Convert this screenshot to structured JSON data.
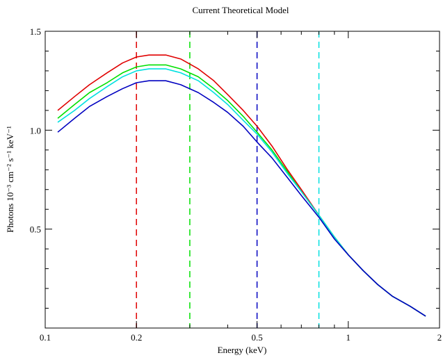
{
  "chart_data": {
    "type": "line",
    "title": "Current Theoretical Model",
    "xlabel": "Energy (keV)",
    "ylabel": "Photons 10⁻³ cm⁻² s⁻¹ keV⁻¹",
    "xscale": "log",
    "xlim": [
      0.1,
      2.0
    ],
    "ylim": [
      0.0,
      1.5
    ],
    "x_ticks": [
      {
        "value": 0.1,
        "label": "0.1"
      },
      {
        "value": 0.2,
        "label": "0.2"
      },
      {
        "value": 0.5,
        "label": "0.5"
      },
      {
        "value": 1.0,
        "label": "1"
      },
      {
        "value": 2.0,
        "label": "2"
      }
    ],
    "y_ticks": [
      {
        "value": 0.5,
        "label": "0.5"
      },
      {
        "value": 1.0,
        "label": "1.0"
      },
      {
        "value": 1.5,
        "label": "1.5"
      }
    ],
    "grid": false,
    "x": [
      0.11,
      0.125,
      0.14,
      0.16,
      0.18,
      0.2,
      0.22,
      0.25,
      0.28,
      0.32,
      0.36,
      0.4,
      0.45,
      0.5,
      0.56,
      0.63,
      0.7,
      0.8,
      0.9,
      1.0,
      1.12,
      1.25,
      1.4,
      1.6,
      1.8
    ],
    "series": [
      {
        "color": "#e00000",
        "values": [
          1.1,
          1.17,
          1.23,
          1.29,
          1.34,
          1.37,
          1.38,
          1.38,
          1.36,
          1.31,
          1.25,
          1.18,
          1.1,
          1.02,
          0.92,
          0.8,
          0.7,
          0.57,
          0.46,
          0.37,
          0.29,
          0.22,
          0.16,
          0.11,
          0.06
        ]
      },
      {
        "color": "#00e000",
        "values": [
          1.06,
          1.13,
          1.19,
          1.24,
          1.29,
          1.32,
          1.33,
          1.33,
          1.31,
          1.27,
          1.21,
          1.15,
          1.07,
          0.99,
          0.9,
          0.79,
          0.69,
          0.57,
          0.46,
          0.37,
          0.29,
          0.22,
          0.16,
          0.11,
          0.06
        ]
      },
      {
        "color": "#00e0e0",
        "values": [
          1.04,
          1.1,
          1.16,
          1.22,
          1.27,
          1.3,
          1.31,
          1.31,
          1.29,
          1.25,
          1.19,
          1.13,
          1.05,
          0.98,
          0.89,
          0.78,
          0.69,
          0.57,
          0.46,
          0.37,
          0.29,
          0.22,
          0.16,
          0.11,
          0.06
        ]
      },
      {
        "color": "#0000c0",
        "values": [
          0.99,
          1.06,
          1.12,
          1.17,
          1.21,
          1.24,
          1.25,
          1.25,
          1.23,
          1.19,
          1.14,
          1.09,
          1.02,
          0.94,
          0.86,
          0.76,
          0.67,
          0.56,
          0.45,
          0.37,
          0.29,
          0.22,
          0.16,
          0.11,
          0.06
        ]
      }
    ],
    "vlines": [
      {
        "x": 0.2,
        "color": "#e00000"
      },
      {
        "x": 0.3,
        "color": "#00e000"
      },
      {
        "x": 0.5,
        "color": "#0000c0"
      },
      {
        "x": 0.8,
        "color": "#00e0e0"
      }
    ]
  }
}
